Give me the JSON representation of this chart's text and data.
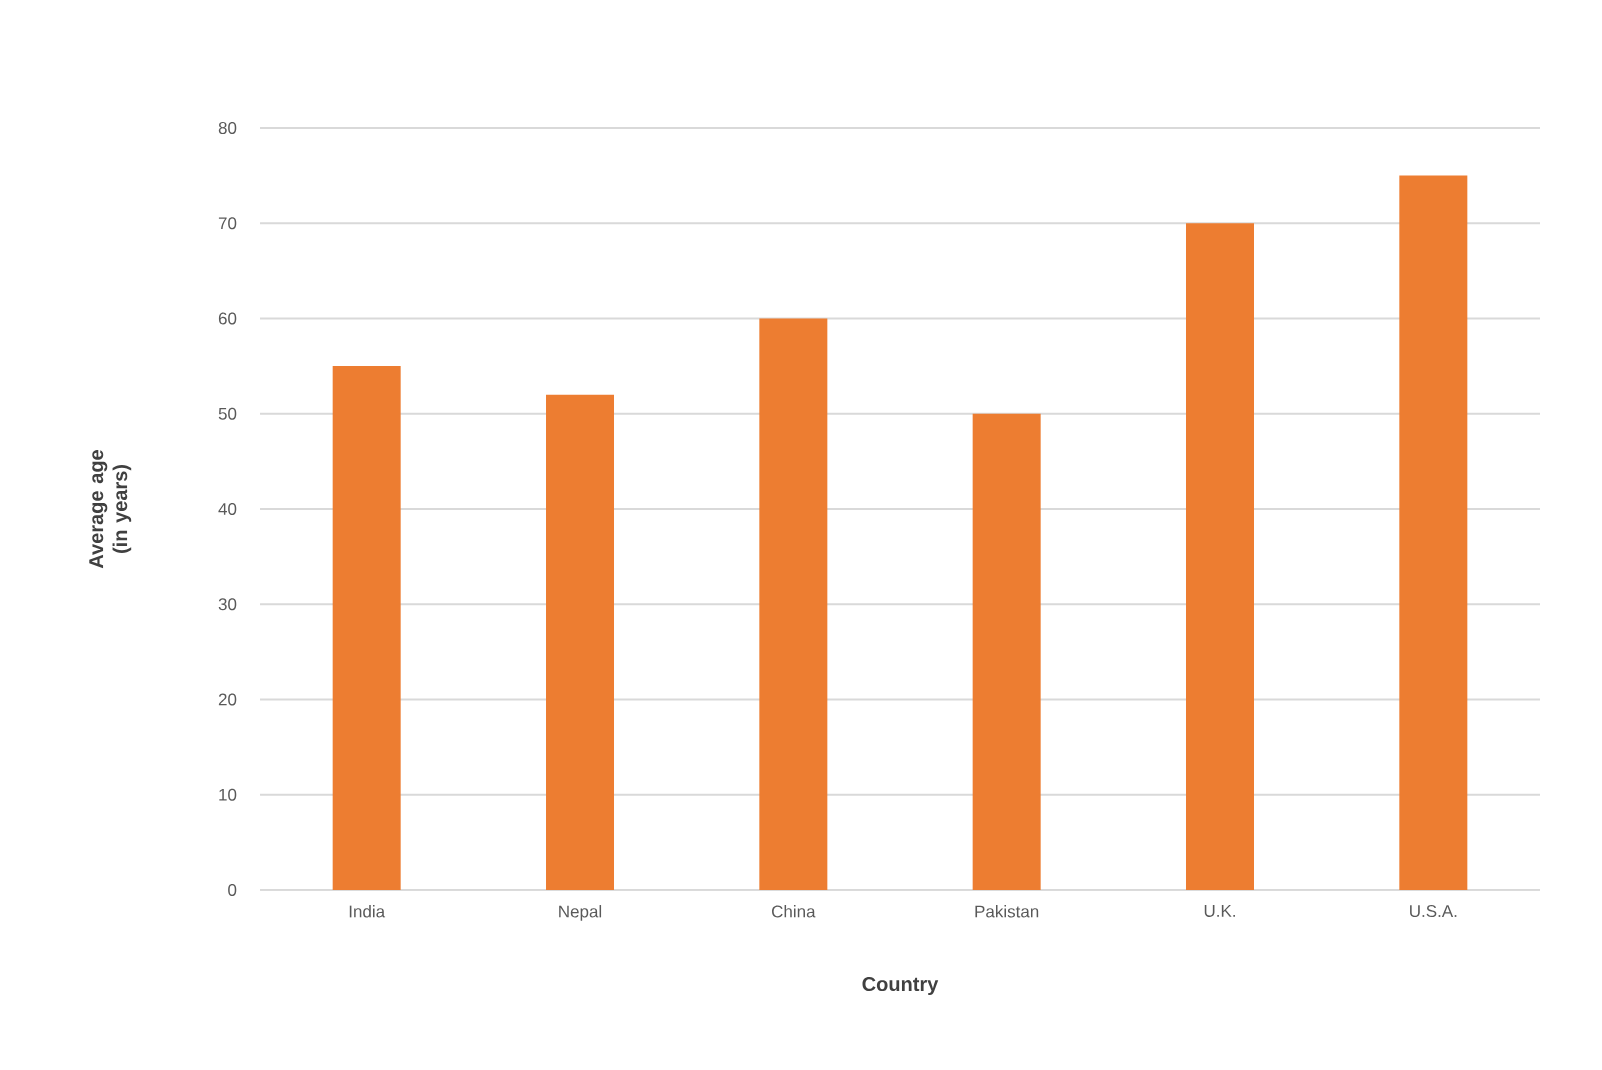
{
  "chart_data": {
    "type": "bar",
    "categories": [
      "India",
      "Nepal",
      "China",
      "Pakistan",
      "U.K.",
      "U.S.A."
    ],
    "values": [
      55,
      52,
      60,
      50,
      70,
      75
    ],
    "color": "#ed7d31",
    "xlabel": "Country",
    "ylabel": "Average age (in years)",
    "ylim": [
      0,
      80
    ],
    "yticks": [
      0,
      10,
      20,
      30,
      40,
      50,
      60,
      70,
      80
    ],
    "grid": "y"
  }
}
